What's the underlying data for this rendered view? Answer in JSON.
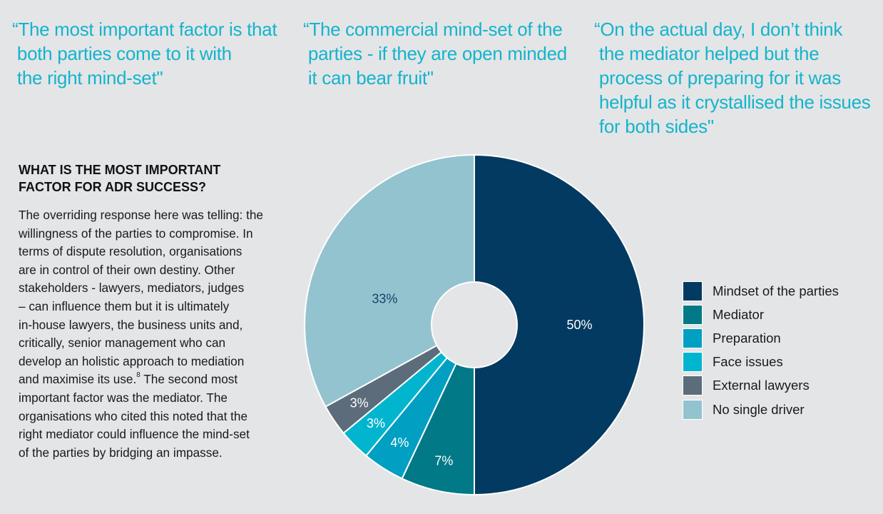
{
  "quotes": [
    {
      "text": "“The most important factor is that\n both parties come to it with\n the right mind-set\""
    },
    {
      "text": "“The commercial mind-set of the\n parties - if they are open minded\n it can bear fruit\""
    },
    {
      "text": "“On the actual day, I don’t think\n the mediator helped but the\n process of preparing for it was\n helpful as it crystallised the issues\n for both sides\""
    }
  ],
  "section": {
    "heading": "WHAT IS THE MOST IMPORTANT\nFACTOR FOR ADR SUCCESS?",
    "body_part1": "The overriding response here was telling: the\nwillingness of the parties to compromise. In\nterms of dispute resolution, organisations\nare in control of their own destiny. Other\nstakeholders - lawyers, mediators, judges\n– can influence them but it is ultimately\nin-house lawyers, the business units and,\ncritically, senior management who can\ndevelop an holistic approach to mediation\nand maximise its use.",
    "footnote": "8",
    "body_part2": " The second most\nimportant factor was the mediator. The\norganisations who cited this noted that the\nright mediator could influence the mind-set\nof the parties by bridging an impasse."
  },
  "chart_data": {
    "type": "pie",
    "variant": "donut",
    "title": "What is the most important factor for ADR success?",
    "start": "12 o'clock, clockwise",
    "legend_position": "right",
    "slices": [
      {
        "label": "Mindset of the parties",
        "value": 50,
        "display": "50%",
        "color": "#033a62",
        "label_color": "#ffffff"
      },
      {
        "label": "Mediator",
        "value": 7,
        "display": "7%",
        "color": "#017987",
        "label_color": "#ffffff"
      },
      {
        "label": "Preparation",
        "value": 4,
        "display": "4%",
        "color": "#019fc2",
        "label_color": "#ffffff"
      },
      {
        "label": "Face issues",
        "value": 3,
        "display": "3%",
        "color": "#02b5cf",
        "label_color": "#ffffff"
      },
      {
        "label": "External lawyers",
        "value": 3,
        "display": "3%",
        "color": "#5c6c7a",
        "label_color": "#ffffff"
      },
      {
        "label": "No single driver",
        "value": 33,
        "display": "33%",
        "color": "#93c3cf",
        "label_color": "#1d3f6a"
      }
    ]
  }
}
